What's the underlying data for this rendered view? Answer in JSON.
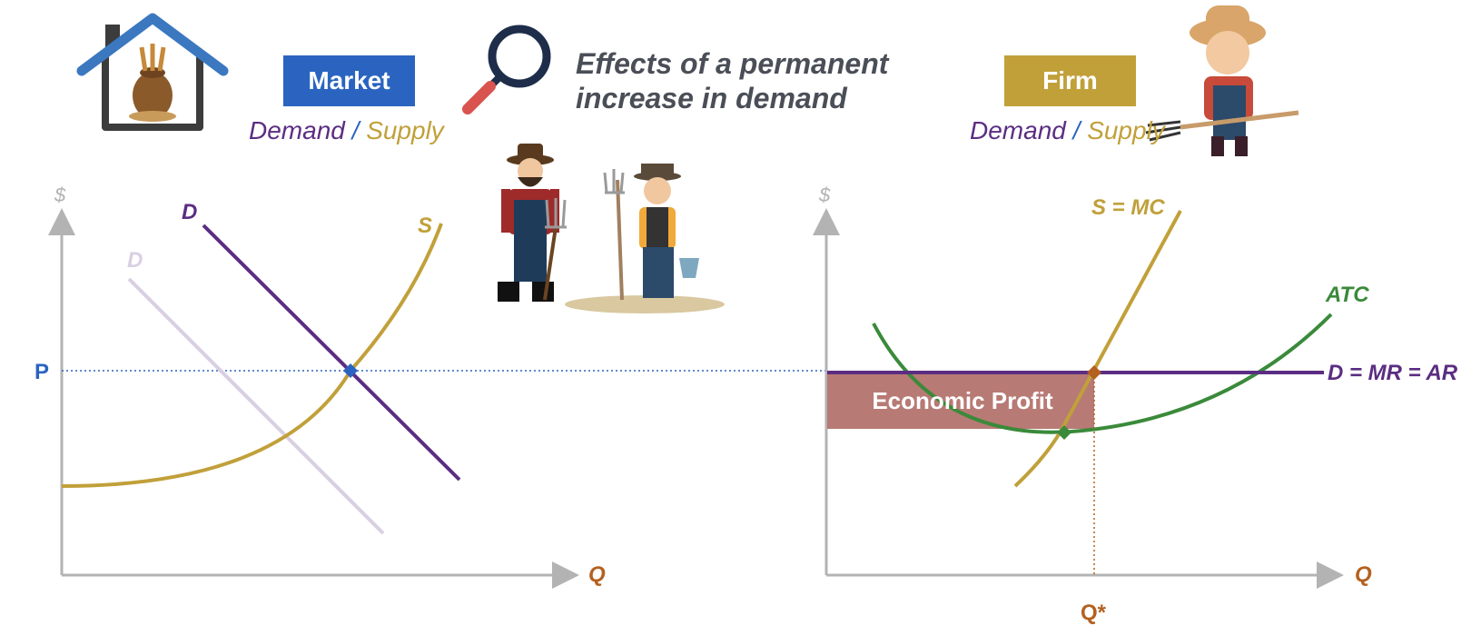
{
  "market": {
    "badge": "Market",
    "demand_word": "Demand",
    "slash": "/",
    "supply_word": "Supply"
  },
  "firm": {
    "badge": "Firm",
    "demand_word": "Demand",
    "slash": "/",
    "supply_word": "Supply"
  },
  "title": {
    "line1": "Effects of a permanent",
    "line2": "increase in demand"
  },
  "left_chart": {
    "y_axis": "$",
    "x_axis": "Q",
    "price_label": "P",
    "demand_label": "D",
    "old_demand_label": "D",
    "supply_label": "S"
  },
  "right_chart": {
    "y_axis": "$",
    "x_axis": "Q",
    "supply_label": "S = MC",
    "atc_label": "ATC",
    "demand_label": "D = MR = AR",
    "profit_label": "Economic Profit",
    "quantity_label": "Q*"
  },
  "colors": {
    "purple": "#5b2d82",
    "light_purple": "#d9cfe3",
    "gold": "#c1a03a",
    "blue": "#2a64c0",
    "green": "#3a8a3a",
    "orange": "#b4601e",
    "gray": "#b3b3b3",
    "profit": "#b87a75"
  },
  "icons": {
    "house": "house-with-grain-sack-icon",
    "magnifier": "magnifying-glass-icon",
    "farmers": "two-farmers-illustration",
    "boy_farmer": "boy-farmer-with-pitchfork-illustration"
  }
}
